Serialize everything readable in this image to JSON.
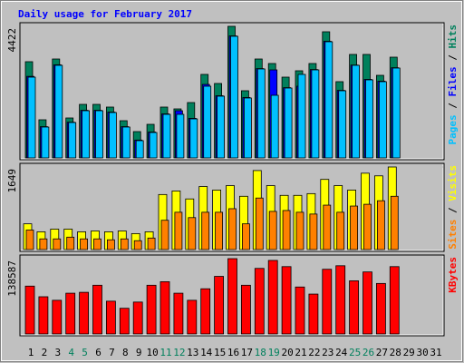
{
  "title": "Daily usage for February 2017",
  "chart_data": [
    {
      "type": "bar",
      "ylim": [
        0,
        4422
      ],
      "yticks": [
        4422
      ],
      "legend_separator": " / ",
      "series": [
        {
          "name": "Hits",
          "color": "#00805c",
          "values": [
            3233,
            1281,
            3324,
            1342,
            1799,
            1799,
            1708,
            1250,
            884,
            1128,
            1708,
            1647,
            1860,
            2806,
            2501,
            4422,
            2257,
            3324,
            3172,
            2714,
            2928,
            3172,
            4239,
            2562,
            3477,
            3477,
            2775,
            3385,
            null,
            null,
            null
          ]
        },
        {
          "name": "Files",
          "color": "#0000ff",
          "values": [
            2740,
            1050,
            3130,
            1200,
            1600,
            1600,
            1540,
            1050,
            600,
            870,
            1480,
            1586,
            1330,
            2470,
            2090,
            4100,
            2030,
            3000,
            2958,
            2360,
            2409,
            2970,
            3920,
            2270,
            3120,
            2640,
            2580,
            3030,
            null,
            null,
            null
          ]
        },
        {
          "name": "Pages",
          "color": "#00c0ff",
          "values": [
            2714,
            1037,
            3111,
            1189,
            1586,
            1586,
            1525,
            1037,
            580,
            854,
            1464,
            1464,
            1311,
            2409,
            2074,
            4087,
            2013,
            2989,
            2104,
            2348,
            2806,
            2958,
            3904,
            2257,
            3111,
            2623,
            2562,
            3019,
            null,
            null,
            null
          ]
        }
      ]
    },
    {
      "type": "bar",
      "ylim": [
        0,
        1649
      ],
      "yticks": [
        1649
      ],
      "legend_separator": " / ",
      "series": [
        {
          "name": "Visits",
          "color": "#ffff00",
          "values": [
            514,
            355,
            408,
            408,
            355,
            372,
            355,
            372,
            319,
            355,
            1099,
            1170,
            1011,
            1259,
            1188,
            1277,
            1064,
            1578,
            1277,
            1082,
            1082,
            1117,
            1401,
            1277,
            1188,
            1525,
            1472,
            1649,
            null,
            null,
            null
          ]
        },
        {
          "name": "Sites",
          "color": "#ff8000",
          "values": [
            390,
            213,
            213,
            248,
            213,
            213,
            195,
            213,
            177,
            230,
            585,
            745,
            638,
            745,
            745,
            816,
            514,
            1029,
            762,
            780,
            745,
            709,
            887,
            745,
            869,
            904,
            975,
            1064,
            null,
            null,
            null
          ]
        }
      ]
    },
    {
      "type": "bar",
      "ylim": [
        0,
        138587
      ],
      "yticks": [
        138587
      ],
      "legend_separator": " / ",
      "categories": [
        "1",
        "2",
        "3",
        "4",
        "5",
        "6",
        "7",
        "8",
        "9",
        "10",
        "11",
        "12",
        "13",
        "14",
        "15",
        "16",
        "17",
        "18",
        "19",
        "20",
        "21",
        "22",
        "23",
        "24",
        "25",
        "26",
        "27",
        "28",
        "29",
        "30",
        "31"
      ],
      "category_colors": [
        "#000000",
        "#000000",
        "#000000",
        "#00805c",
        "#00805c",
        "#000000",
        "#000000",
        "#000000",
        "#000000",
        "#000000",
        "#00805c",
        "#00805c",
        "#000000",
        "#000000",
        "#000000",
        "#000000",
        "#000000",
        "#00805c",
        "#00805c",
        "#000000",
        "#000000",
        "#000000",
        "#000000",
        "#000000",
        "#00805c",
        "#00805c",
        "#000000",
        "#000000",
        "#000000",
        "#000000",
        "#000000"
      ],
      "series": [
        {
          "name": "KBytes",
          "color": "#ff0000",
          "values": [
            88030,
            68470,
            61950,
            74990,
            76620,
            89660,
            60320,
            47280,
            58690,
            89660,
            96180,
            74990,
            61950,
            83140,
            105970,
            138587,
            89660,
            120640,
            135310,
            123900,
            86400,
            73370,
            119010,
            125530,
            97810,
            114120,
            92920,
            123900,
            null,
            null,
            null
          ]
        }
      ]
    }
  ]
}
